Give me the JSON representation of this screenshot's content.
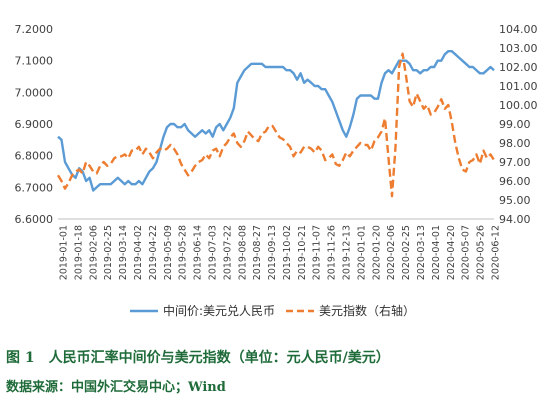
{
  "chart_data": {
    "type": "line",
    "title": "",
    "x_tick_labels": [
      "2019-01-01",
      "2019-01-18",
      "2019-02-06",
      "2019-02-25",
      "2019-03-14",
      "2019-04-02",
      "2019-04-22",
      "2019-05-09",
      "2019-05-28",
      "2019-06-14",
      "2019-07-03",
      "2019-07-22",
      "2019-08-08",
      "2019-08-27",
      "2019-09-13",
      "2019-10-02",
      "2019-10-21",
      "2019-11-07",
      "2019-11-26",
      "2019-12-13",
      "2020-01-01",
      "2020-01-20",
      "2020-02-06",
      "2020-02-25",
      "2020-03-13",
      "2020-04-01",
      "2020-04-20",
      "2020-05-07",
      "2020-05-26",
      "2020-06-12"
    ],
    "left_axis": {
      "ticks": [
        "6.6000",
        "6.7000",
        "6.8000",
        "6.9000",
        "7.0000",
        "7.1000",
        "7.2000"
      ],
      "ylim": [
        6.6,
        7.2
      ]
    },
    "right_axis": {
      "ticks": [
        "94.00",
        "95.00",
        "96.00",
        "97.00",
        "98.00",
        "99.00",
        "100.00",
        "101.00",
        "102.00",
        "103.00",
        "104.00"
      ],
      "ylim": [
        94,
        104
      ]
    },
    "grid": false,
    "legend_position": "bottom",
    "series": [
      {
        "name": "中间价:美元兑人民币",
        "axis": "left",
        "color": "#5b9bd5",
        "style": "solid",
        "x": [
          0,
          3,
          6,
          9,
          12,
          15,
          18,
          21,
          24,
          27,
          30,
          33,
          36,
          39,
          42,
          45,
          48,
          51,
          54,
          57,
          60,
          63,
          66,
          69,
          72,
          75,
          78,
          81,
          84,
          87,
          90,
          93,
          96,
          99,
          102,
          105,
          108,
          111,
          114,
          117,
          120,
          123,
          126,
          129,
          132,
          135,
          138,
          141,
          144,
          147,
          150,
          153,
          156,
          159,
          162,
          165,
          168,
          171,
          174,
          177,
          180,
          183,
          186,
          189,
          192,
          195,
          198,
          201,
          204,
          207,
          210,
          213,
          216,
          219,
          222,
          225,
          228,
          231,
          234,
          237,
          240,
          243,
          246,
          249,
          252,
          255,
          258,
          261,
          264,
          267,
          270,
          273,
          276,
          279,
          282,
          285,
          288,
          291,
          294,
          297,
          300,
          303,
          306,
          309,
          312,
          315,
          318,
          321,
          324,
          327,
          330,
          333,
          336,
          339,
          342,
          345,
          348,
          351,
          354,
          357,
          360,
          363,
          366,
          369,
          372
        ],
        "values": [
          6.86,
          6.85,
          6.78,
          6.76,
          6.74,
          6.73,
          6.76,
          6.75,
          6.72,
          6.73,
          6.69,
          6.7,
          6.71,
          6.71,
          6.71,
          6.71,
          6.72,
          6.73,
          6.72,
          6.71,
          6.72,
          6.71,
          6.71,
          6.72,
          6.71,
          6.73,
          6.75,
          6.76,
          6.78,
          6.82,
          6.86,
          6.89,
          6.9,
          6.9,
          6.89,
          6.89,
          6.9,
          6.88,
          6.87,
          6.86,
          6.87,
          6.88,
          6.87,
          6.88,
          6.86,
          6.89,
          6.9,
          6.88,
          6.9,
          6.92,
          6.95,
          7.03,
          7.05,
          7.07,
          7.08,
          7.09,
          7.09,
          7.09,
          7.09,
          7.08,
          7.08,
          7.08,
          7.08,
          7.08,
          7.08,
          7.07,
          7.07,
          7.06,
          7.04,
          7.06,
          7.03,
          7.04,
          7.03,
          7.02,
          7.02,
          7.01,
          7.01,
          6.99,
          6.97,
          6.94,
          6.91,
          6.88,
          6.86,
          6.89,
          6.93,
          6.98,
          6.99,
          6.99,
          6.99,
          6.99,
          6.98,
          6.98,
          7.03,
          7.06,
          7.07,
          7.06,
          7.08,
          7.1,
          7.1,
          7.1,
          7.09,
          7.07,
          7.07,
          7.06,
          7.07,
          7.07,
          7.08,
          7.08,
          7.1,
          7.1,
          7.12,
          7.13,
          7.13,
          7.12,
          7.11,
          7.1,
          7.09,
          7.08,
          7.08,
          7.07,
          7.06,
          7.06,
          7.07,
          7.08,
          7.07
        ]
      },
      {
        "name": "美元指数（右轴）",
        "axis": "right",
        "color": "#ed7d31",
        "style": "dashed",
        "x": [
          0,
          3,
          6,
          9,
          12,
          15,
          18,
          21,
          24,
          27,
          30,
          33,
          36,
          39,
          42,
          45,
          48,
          51,
          54,
          57,
          60,
          63,
          66,
          69,
          72,
          75,
          78,
          81,
          84,
          87,
          90,
          93,
          96,
          99,
          102,
          105,
          108,
          111,
          114,
          117,
          120,
          123,
          126,
          129,
          132,
          135,
          138,
          141,
          144,
          147,
          150,
          153,
          156,
          159,
          162,
          165,
          168,
          171,
          174,
          177,
          180,
          183,
          186,
          189,
          192,
          195,
          198,
          201,
          204,
          207,
          210,
          213,
          216,
          219,
          222,
          225,
          228,
          231,
          234,
          237,
          240,
          243,
          246,
          249,
          252,
          255,
          258,
          261,
          264,
          267,
          270,
          273,
          276,
          279,
          282,
          285,
          288,
          291,
          294,
          297,
          300,
          303,
          306,
          309,
          312,
          315,
          318,
          321,
          324,
          327,
          330,
          333,
          336,
          339,
          342,
          345,
          348,
          351,
          354,
          357,
          360,
          363,
          366,
          369,
          372
        ],
        "values": [
          96.3,
          96.0,
          95.6,
          95.9,
          96.3,
          96.5,
          96.6,
          96.4,
          97.0,
          96.8,
          96.5,
          96.4,
          96.8,
          97.0,
          96.8,
          96.9,
          97.2,
          97.3,
          97.3,
          97.4,
          97.2,
          97.6,
          97.6,
          97.8,
          97.4,
          97.7,
          97.5,
          97.2,
          97.5,
          97.7,
          97.6,
          97.7,
          97.9,
          97.7,
          97.4,
          96.9,
          96.6,
          96.3,
          96.5,
          96.8,
          97.0,
          97.1,
          97.4,
          97.2,
          97.6,
          97.7,
          97.3,
          97.8,
          98.0,
          98.3,
          98.5,
          98.0,
          97.8,
          98.1,
          98.6,
          98.4,
          98.2,
          98.1,
          98.5,
          98.6,
          98.9,
          98.9,
          98.6,
          98.3,
          98.2,
          98.0,
          97.8,
          97.3,
          97.6,
          97.5,
          97.8,
          97.8,
          97.7,
          97.5,
          97.8,
          97.6,
          97.1,
          97.2,
          97.4,
          96.9,
          96.8,
          97.1,
          97.5,
          97.3,
          97.6,
          97.8,
          98.0,
          97.9,
          97.9,
          97.6,
          98.1,
          98.3,
          98.6,
          99.3,
          97.2,
          95.2,
          97.8,
          102.0,
          102.7,
          101.5,
          100.2,
          99.9,
          100.6,
          100.2,
          99.8,
          100.0,
          99.5,
          99.6,
          99.9,
          100.3,
          99.8,
          100.0,
          99.1,
          98.0,
          97.2,
          96.6,
          96.5,
          97.0,
          97.1,
          97.4,
          96.9,
          97.6,
          97.2,
          97.4,
          97.1
        ]
      }
    ]
  },
  "caption": {
    "title": "图 1　人民币汇率中间价与美元指数（单位：元人民币/美元）",
    "source": "数据来源：中国外汇交易中心；Wind"
  }
}
